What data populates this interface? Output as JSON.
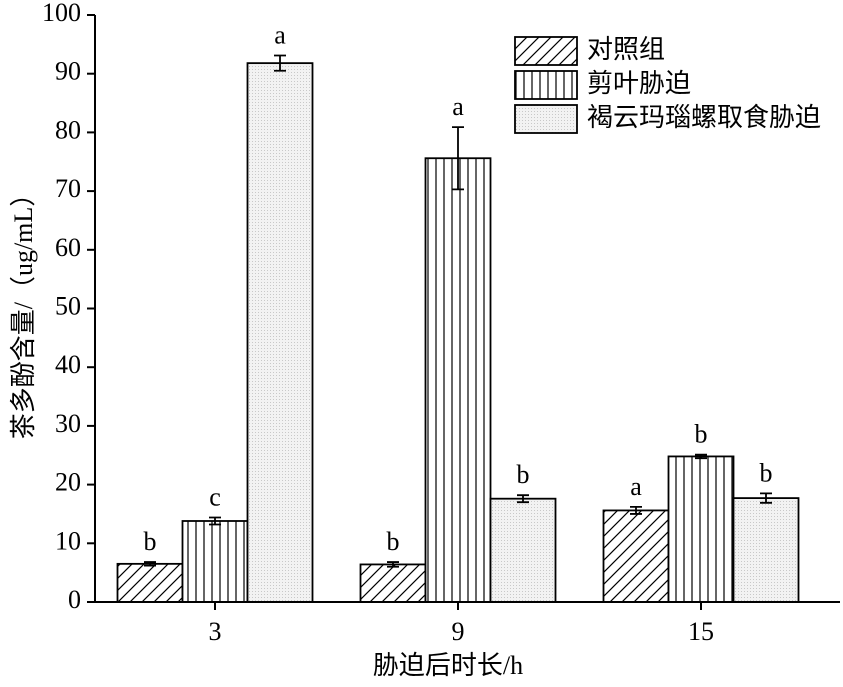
{
  "chart_data": {
    "type": "bar",
    "x_label": "胁迫后时长/h",
    "y_label": "茶多酚含量/（ug/mL）",
    "categories": [
      "3",
      "9",
      "15"
    ],
    "series": [
      {
        "name": "对照组",
        "color": "#000000",
        "pattern": "diagonal",
        "values": [
          6.5,
          6.4,
          15.6
        ],
        "errors": [
          0.3,
          0.4,
          0.6
        ],
        "letters": [
          "b",
          "b",
          "a"
        ]
      },
      {
        "name": "剪叶胁迫",
        "color": "#000000",
        "pattern": "vertical",
        "values": [
          13.8,
          75.6,
          24.8
        ],
        "errors": [
          0.6,
          5.3,
          0.3
        ],
        "letters": [
          "c",
          "a",
          "b"
        ]
      },
      {
        "name": "褐云玛瑙螺取食胁迫",
        "color": "#000000",
        "pattern": "dots",
        "values": [
          91.8,
          17.6,
          17.7
        ],
        "errors": [
          1.3,
          0.6,
          0.8
        ],
        "letters": [
          "a",
          "b",
          "b"
        ]
      }
    ],
    "ylim": [
      0,
      100
    ],
    "yticks": [
      0,
      10,
      20,
      30,
      40,
      50,
      60,
      70,
      80,
      90,
      100
    ],
    "legend": "upper right"
  }
}
